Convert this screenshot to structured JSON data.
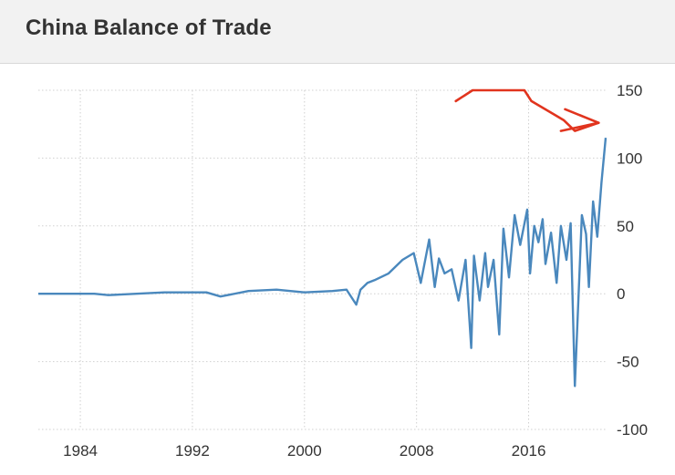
{
  "header": {
    "title": "China Balance of Trade"
  },
  "colors": {
    "line": "#4a88bd",
    "annotation": "#e1341e",
    "grid": "#d0d0d0",
    "header_bg": "#f2f2f2"
  },
  "chart_data": {
    "type": "line",
    "title": "China Balance of Trade",
    "xlabel": "",
    "ylabel": "",
    "xlim": [
      1981,
      2021.5
    ],
    "ylim": [
      -100,
      150
    ],
    "x_ticks": [
      1984,
      1992,
      2000,
      2008,
      2016
    ],
    "x_tick_labels": [
      "1984",
      "1992",
      "2000",
      "2008",
      "2016"
    ],
    "y_ticks": [
      150,
      100,
      50,
      0,
      -50,
      -100
    ],
    "y_tick_labels": [
      "150",
      "100",
      "50",
      "0",
      "-50",
      "-100"
    ],
    "grid": true,
    "series": [
      {
        "name": "",
        "x": [
          1981,
          1983,
          1985,
          1986,
          1988,
          1990,
          1991,
          1993,
          1994,
          1996,
          1998,
          1999,
          2000,
          2002,
          2003,
          2003.7,
          2004,
          2004.5,
          2005,
          2006,
          2007,
          2007.8,
          2008.3,
          2008.9,
          2009.3,
          2009.6,
          2010,
          2010.5,
          2011,
          2011.5,
          2011.9,
          2012.1,
          2012.5,
          2012.9,
          2013.1,
          2013.5,
          2013.9,
          2014.2,
          2014.6,
          2015,
          2015.4,
          2015.9,
          2016.1,
          2016.4,
          2016.7,
          2017,
          2017.2,
          2017.6,
          2018,
          2018.3,
          2018.7,
          2019,
          2019.3,
          2019.8,
          2020.1,
          2020.3,
          2020.6,
          2020.9,
          2021.2,
          2021.5
        ],
        "y": [
          0,
          0,
          0,
          -1,
          0,
          1,
          1,
          1,
          -2,
          2,
          3,
          2,
          1,
          2,
          3,
          -8,
          3,
          8,
          10,
          15,
          25,
          30,
          8,
          40,
          5,
          26,
          15,
          18,
          -5,
          25,
          -40,
          28,
          -5,
          30,
          5,
          25,
          -30,
          48,
          12,
          58,
          36,
          62,
          15,
          50,
          38,
          55,
          22,
          45,
          8,
          50,
          25,
          52,
          -68,
          58,
          44,
          5,
          68,
          42,
          82,
          115
        ]
      }
    ],
    "annotations": [
      {
        "type": "hand-drawn-arrow",
        "color": "#e1341e",
        "points": [
          [
            2010.8,
            142
          ],
          [
            2012,
            150
          ],
          [
            2015.7,
            150
          ],
          [
            2016.2,
            142
          ],
          [
            2018.5,
            128
          ],
          [
            2019.3,
            120
          ],
          [
            2021,
            126
          ]
        ]
      },
      {
        "type": "hand-drawn-arrow-head",
        "color": "#e1341e",
        "points": [
          [
            2018.6,
            136
          ],
          [
            2021,
            126
          ],
          [
            2018.3,
            120
          ]
        ]
      }
    ]
  }
}
